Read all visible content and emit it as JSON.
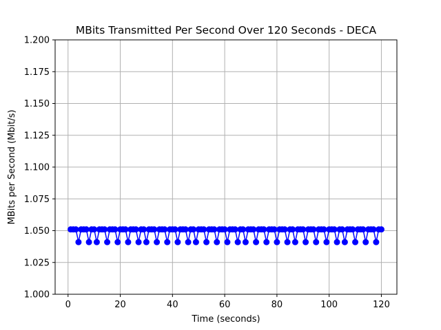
{
  "chart_data": {
    "type": "line",
    "title": "MBits Transmitted Per Second Over 120 Seconds - DECA",
    "xlabel": "Time (seconds)",
    "ylabel": "MBits per Second (Mbit/s)",
    "xlim": [
      -4.95,
      125.95
    ],
    "ylim": [
      1.0,
      1.2
    ],
    "xticks": [
      0,
      20,
      40,
      60,
      80,
      100,
      120
    ],
    "xtick_labels": [
      "0",
      "20",
      "40",
      "60",
      "80",
      "100",
      "120"
    ],
    "yticks": [
      1.0,
      1.025,
      1.05,
      1.075,
      1.1,
      1.125,
      1.15,
      1.175,
      1.2
    ],
    "ytick_labels": [
      "1.000",
      "1.025",
      "1.050",
      "1.075",
      "1.100",
      "1.125",
      "1.150",
      "1.175",
      "1.200"
    ],
    "grid": true,
    "legend": "none",
    "series": [
      {
        "color": "#0000ff",
        "marker": "circle",
        "x": [
          1,
          2,
          3,
          4,
          5,
          6,
          7,
          8,
          9,
          10,
          11,
          12,
          13,
          14,
          15,
          16,
          17,
          18,
          19,
          20,
          21,
          22,
          23,
          24,
          25,
          26,
          27,
          28,
          29,
          30,
          31,
          32,
          33,
          34,
          35,
          36,
          37,
          38,
          39,
          40,
          41,
          42,
          43,
          44,
          45,
          46,
          47,
          48,
          49,
          50,
          51,
          52,
          53,
          54,
          55,
          56,
          57,
          58,
          59,
          60,
          61,
          62,
          63,
          64,
          65,
          66,
          67,
          68,
          69,
          70,
          71,
          72,
          73,
          74,
          75,
          76,
          77,
          78,
          79,
          80,
          81,
          82,
          83,
          84,
          85,
          86,
          87,
          88,
          89,
          90,
          91,
          92,
          93,
          94,
          95,
          96,
          97,
          98,
          99,
          100,
          101,
          102,
          103,
          104,
          105,
          106,
          107,
          108,
          109,
          110,
          111,
          112,
          113,
          114,
          115,
          116,
          117,
          118,
          119,
          120
        ],
        "y": [
          1.051,
          1.051,
          1.051,
          1.041,
          1.051,
          1.051,
          1.051,
          1.041,
          1.051,
          1.051,
          1.041,
          1.051,
          1.051,
          1.051,
          1.041,
          1.051,
          1.051,
          1.051,
          1.041,
          1.051,
          1.051,
          1.051,
          1.041,
          1.051,
          1.051,
          1.051,
          1.041,
          1.051,
          1.051,
          1.041,
          1.051,
          1.051,
          1.051,
          1.041,
          1.051,
          1.051,
          1.051,
          1.041,
          1.051,
          1.051,
          1.051,
          1.041,
          1.051,
          1.051,
          1.051,
          1.041,
          1.051,
          1.051,
          1.041,
          1.051,
          1.051,
          1.051,
          1.041,
          1.051,
          1.051,
          1.051,
          1.041,
          1.051,
          1.051,
          1.051,
          1.041,
          1.051,
          1.051,
          1.051,
          1.041,
          1.051,
          1.051,
          1.041,
          1.051,
          1.051,
          1.051,
          1.041,
          1.051,
          1.051,
          1.051,
          1.041,
          1.051,
          1.051,
          1.051,
          1.041,
          1.051,
          1.051,
          1.051,
          1.041,
          1.051,
          1.051,
          1.041,
          1.051,
          1.051,
          1.051,
          1.041,
          1.051,
          1.051,
          1.051,
          1.041,
          1.051,
          1.051,
          1.051,
          1.041,
          1.051,
          1.051,
          1.051,
          1.041,
          1.051,
          1.051,
          1.041,
          1.051,
          1.051,
          1.051,
          1.041,
          1.051,
          1.051,
          1.051,
          1.041,
          1.051,
          1.051,
          1.051,
          1.041,
          1.051,
          1.051
        ]
      }
    ]
  },
  "colors": {
    "series": "#0000ff",
    "grid": "#b0b0b0",
    "axes": "#000000",
    "background": "#ffffff"
  }
}
